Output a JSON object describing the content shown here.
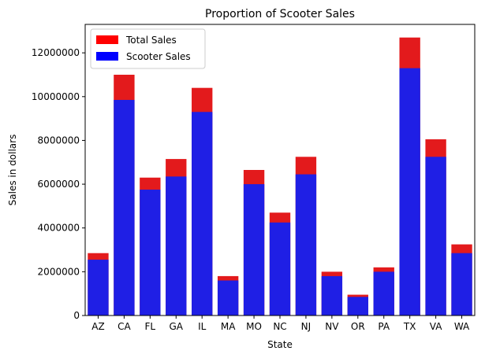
{
  "chart_data": {
    "type": "bar",
    "title": "Proportion of Scooter Sales",
    "xlabel": "State",
    "ylabel": "Sales in dollars",
    "ylim": [
      0,
      13300000
    ],
    "yticks": [
      0,
      2000000,
      4000000,
      6000000,
      8000000,
      10000000,
      12000000
    ],
    "ytick_labels": [
      "0",
      "2000000",
      "4000000",
      "6000000",
      "8000000",
      "10000000",
      "12000000"
    ],
    "categories": [
      "AZ",
      "CA",
      "FL",
      "GA",
      "IL",
      "MA",
      "MO",
      "NC",
      "NJ",
      "NV",
      "OR",
      "PA",
      "TX",
      "VA",
      "WA"
    ],
    "overlay": true,
    "series": [
      {
        "name": "Total Sales",
        "color": "#e31a1c",
        "values": [
          2850000,
          11000000,
          6300000,
          7150000,
          10400000,
          1800000,
          6650000,
          4700000,
          7250000,
          2000000,
          950000,
          2200000,
          12700000,
          8050000,
          3250000
        ]
      },
      {
        "name": "Scooter Sales",
        "color": "#1f1fe5",
        "values": [
          2550000,
          9850000,
          5750000,
          6350000,
          9300000,
          1600000,
          6000000,
          4250000,
          6450000,
          1800000,
          850000,
          2000000,
          11300000,
          7250000,
          2850000
        ]
      }
    ],
    "legend": {
      "position": "top-left",
      "entries": [
        {
          "label": "Total Sales",
          "color": "#ff0000"
        },
        {
          "label": "Scooter Sales",
          "color": "#0000ff"
        }
      ]
    },
    "grid": false
  }
}
